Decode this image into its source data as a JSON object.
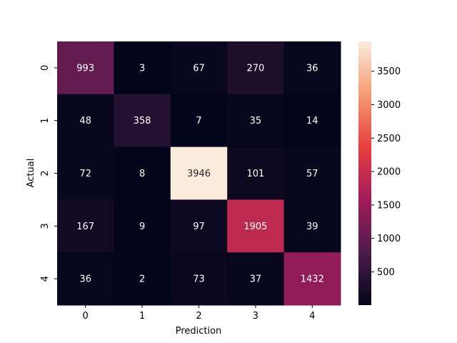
{
  "chart_data": {
    "type": "heatmap",
    "xlabel": "Prediction",
    "ylabel": "Actual",
    "x_categories": [
      "0",
      "1",
      "2",
      "3",
      "4"
    ],
    "y_categories": [
      "0",
      "1",
      "2",
      "3",
      "4"
    ],
    "values": [
      [
        993,
        3,
        67,
        270,
        36
      ],
      [
        48,
        358,
        7,
        35,
        14
      ],
      [
        72,
        8,
        3946,
        101,
        57
      ],
      [
        167,
        9,
        97,
        1905,
        39
      ],
      [
        36,
        2,
        73,
        37,
        1432
      ]
    ],
    "colorbar": {
      "min": 2,
      "max": 3946,
      "ticks": [
        500,
        1000,
        1500,
        2000,
        2500,
        3000,
        3500
      ],
      "colormap": "rocket",
      "colors": [
        "#03051a",
        "#4c1d4b",
        "#a11a5b",
        "#e83f3f",
        "#f69c73",
        "#faebdd"
      ]
    },
    "grid": false,
    "legend": "none"
  }
}
